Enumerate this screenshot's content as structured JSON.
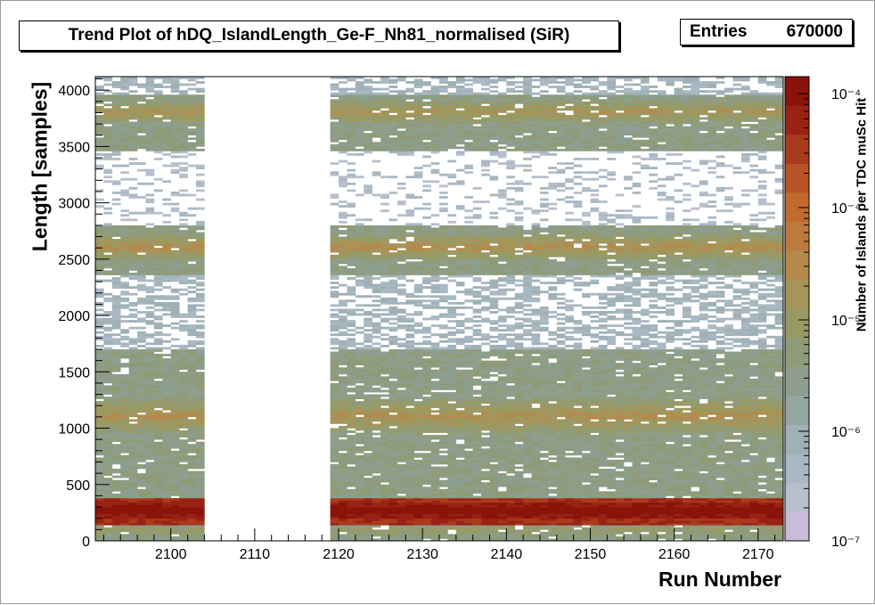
{
  "window": {
    "title": "Trend Plot of hDQ_IslandLength_Ge-F_Nh81_normalised (SiR)"
  },
  "stats": {
    "entries_label": "Entries",
    "entries_value": "670000"
  },
  "chart_data": {
    "type": "heatmap",
    "title": "Trend Plot of hDQ_IslandLength_Ge-F_Nh81_normalised (SiR)",
    "xlabel": "Run Number",
    "ylabel": "Length [samples]",
    "zlabel": "Number of Islands per TDC muSc Hit",
    "xlim": [
      2091,
      2173
    ],
    "ylim": [
      0,
      4120
    ],
    "zlim": [
      1e-07,
      0.0002
    ],
    "z_log": true,
    "x_ticks": [
      2100,
      2110,
      2120,
      2130,
      2140,
      2150,
      2160,
      2170
    ],
    "y_ticks": [
      0,
      500,
      1000,
      1500,
      2000,
      2500,
      3000,
      3500,
      4000
    ],
    "z_tick_labels": [
      "10⁻⁷",
      "10⁻⁶",
      "10⁻⁵",
      "10⁻⁴",
      "10⁻⁴"
    ],
    "missing_runs": [
      2104,
      2118
    ],
    "bands": [
      {
        "y_range": [
          0,
          140
        ],
        "level": "medium"
      },
      {
        "y_range": [
          140,
          380
        ],
        "level": "high"
      },
      {
        "y_range": [
          380,
          700
        ],
        "level": "medium"
      },
      {
        "y_range": [
          700,
          1700
        ],
        "level": "medium"
      },
      {
        "y_range": [
          1700,
          2350
        ],
        "level": "low"
      },
      {
        "y_range": [
          2350,
          2800
        ],
        "level": "medium"
      },
      {
        "y_range": [
          2800,
          3450
        ],
        "level": "very-low"
      },
      {
        "y_range": [
          3450,
          3950
        ],
        "level": "medium"
      },
      {
        "y_range": [
          3950,
          4120
        ],
        "level": "low"
      }
    ],
    "grid": false
  },
  "palette": {
    "axis": "#000000",
    "background": "#ffffff",
    "colors": [
      "#c8bcd8",
      "#b8bfcc",
      "#a9b8c3",
      "#9fb1b6",
      "#93a8a2",
      "#8d9e8e",
      "#8f9b78",
      "#989a66",
      "#a6955a",
      "#b48a4c",
      "#bd7a3d",
      "#c06a30",
      "#b85326",
      "#a93a1c",
      "#9a2214",
      "#8a1208"
    ]
  }
}
